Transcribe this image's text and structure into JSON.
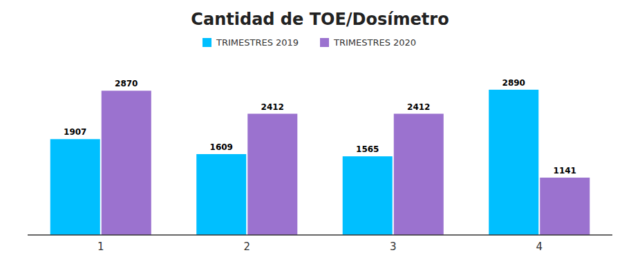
{
  "chart_data": {
    "type": "bar",
    "title": "Cantidad de TOE/Dosímetro",
    "categories": [
      "1",
      "2",
      "3",
      "4"
    ],
    "series": [
      {
        "name": "TRIMESTRES 2019",
        "color": "#00BFFF",
        "values": [
          1907,
          1609,
          1565,
          2890
        ]
      },
      {
        "name": "TRIMESTRES 2020",
        "color": "#9B72CF",
        "values": [
          2870,
          2412,
          2412,
          1141
        ]
      }
    ],
    "ylim": [
      0,
      3300
    ],
    "grid": false,
    "legend": "top",
    "data_labels": true,
    "tick_labels": "x"
  }
}
